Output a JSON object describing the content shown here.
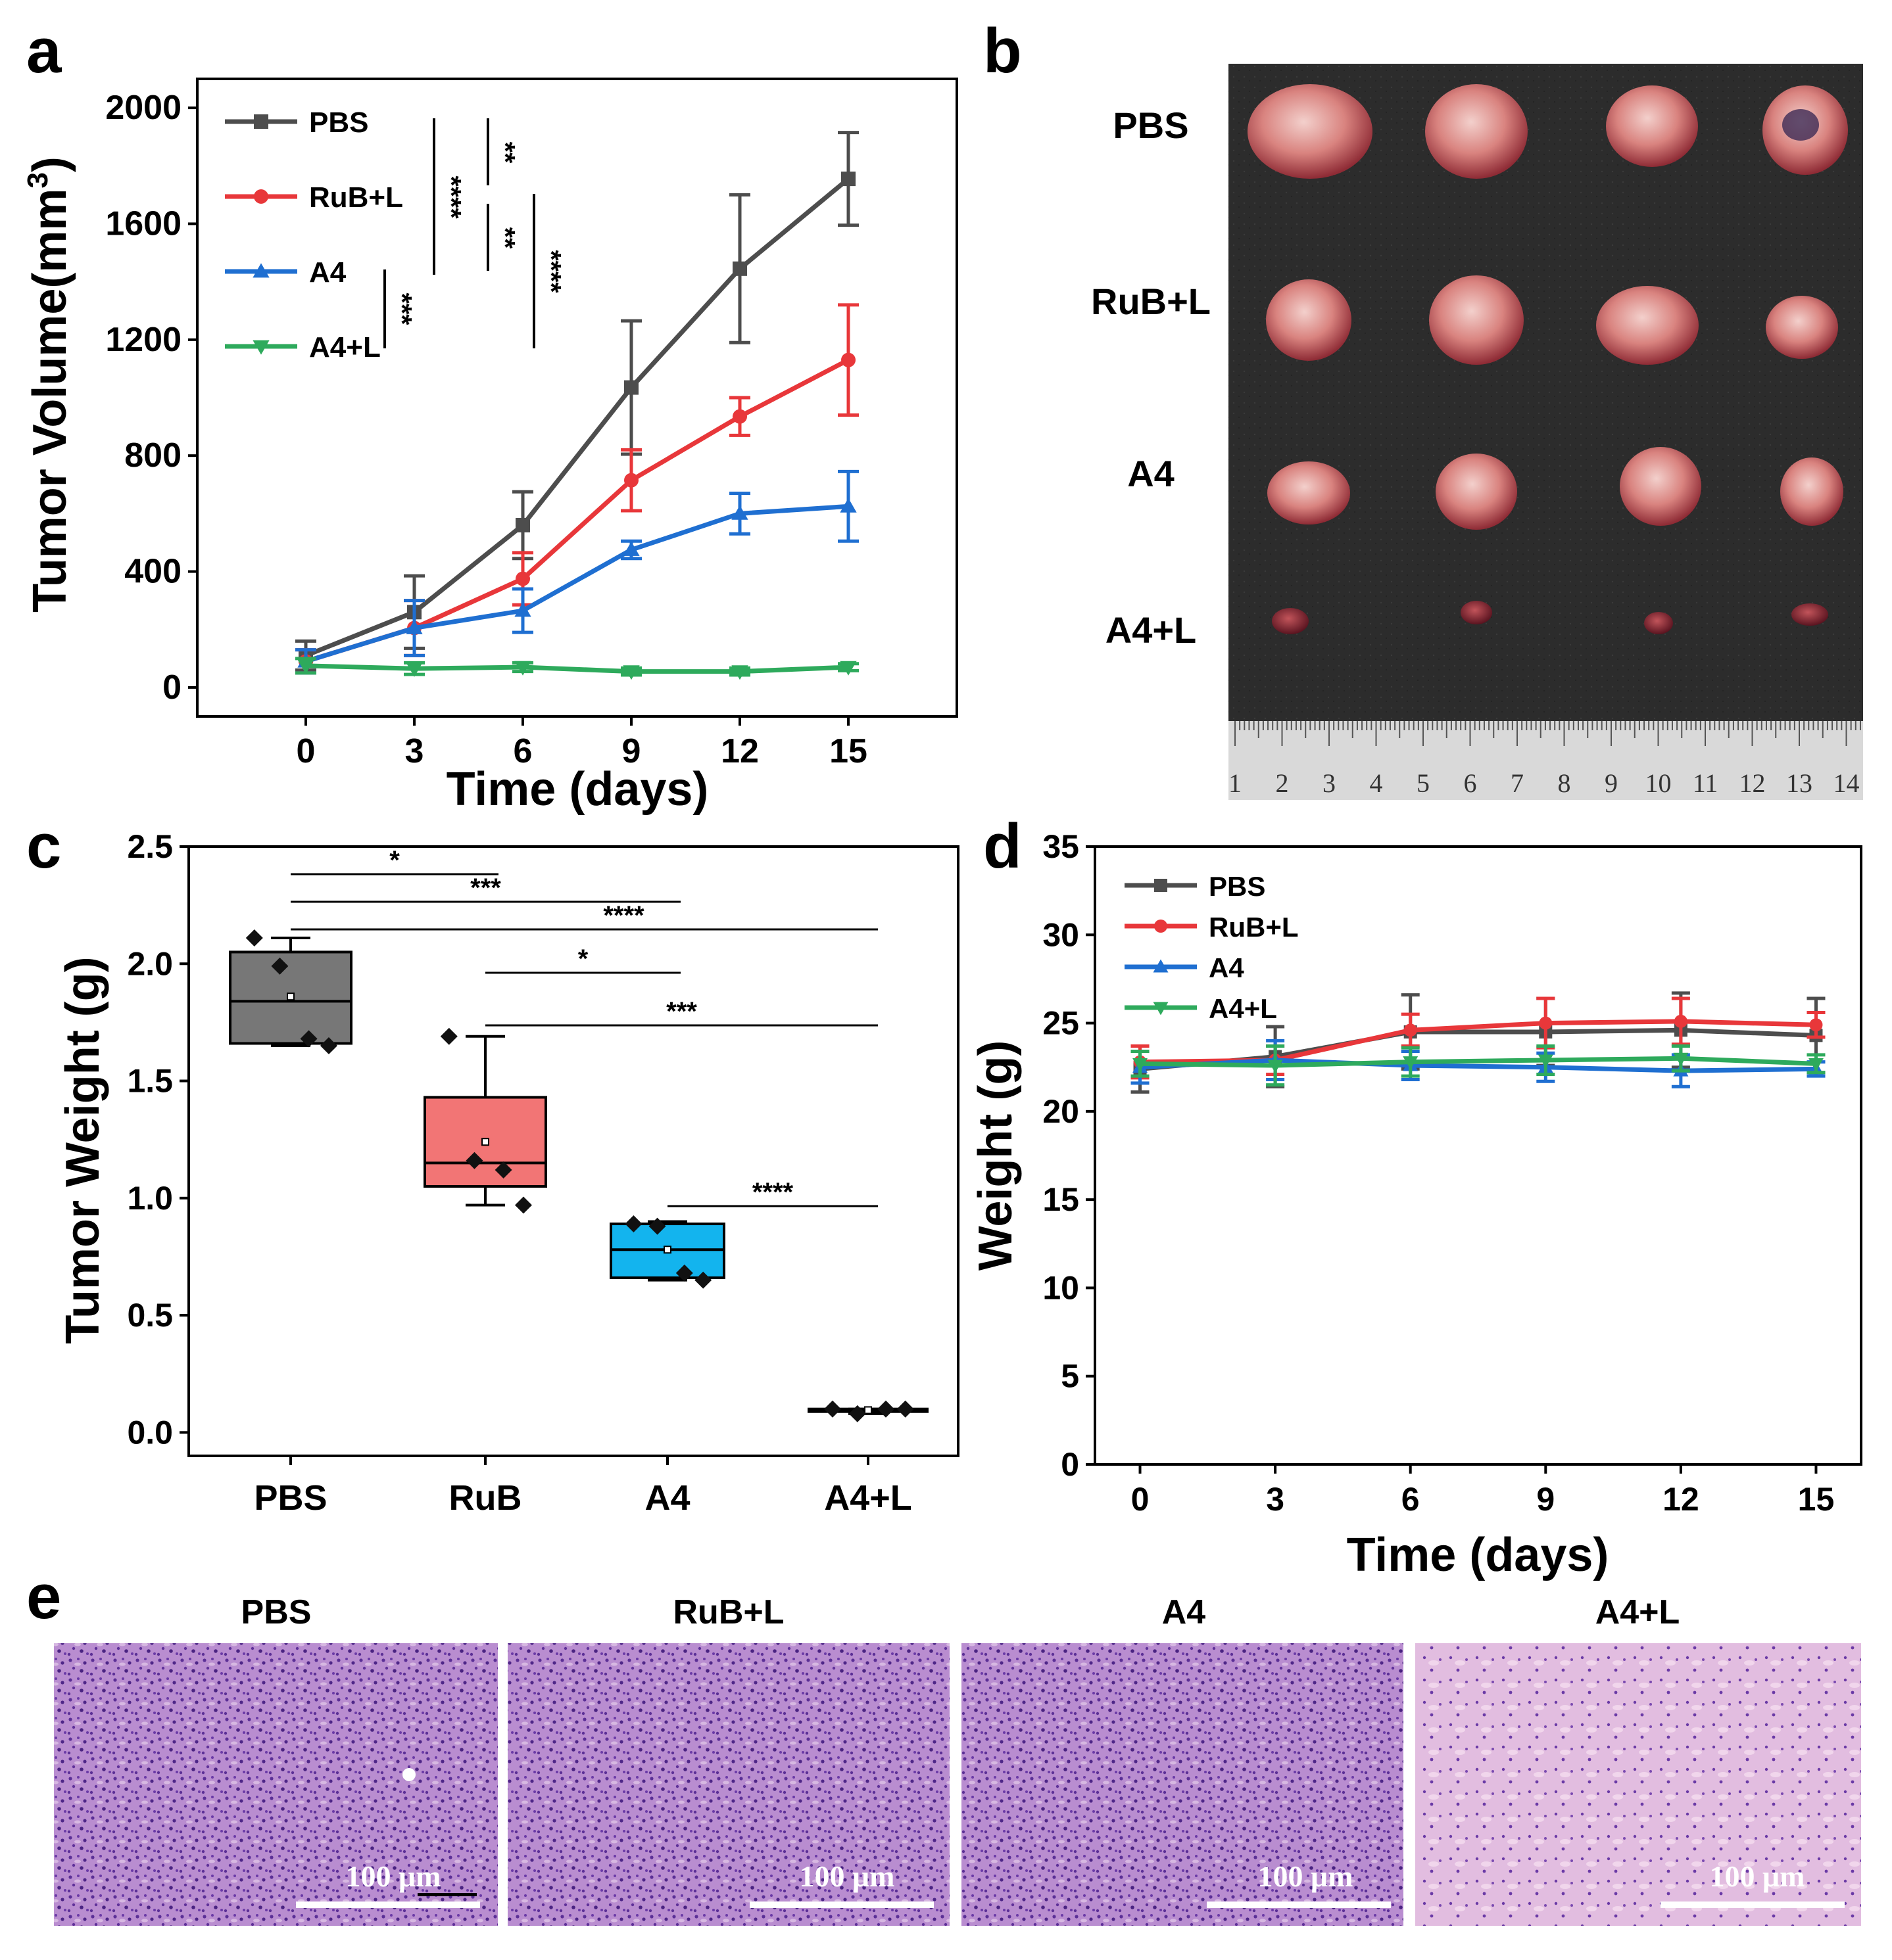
{
  "panel_labels": [
    "a",
    "b",
    "c",
    "d",
    "e"
  ],
  "colors": {
    "PBS": "#4d4d4d",
    "RuB+L": "#e8373a",
    "A4": "#1f6fd1",
    "A4+L": "#2eaa5c",
    "box_PBS": "#777777",
    "box_RuB": "#f27575",
    "box_A4": "#13b4ee",
    "box_A4L": "#f2f2f2"
  },
  "chart_data": [
    {
      "panel": "a",
      "type": "line",
      "xlabel": "Time (days)",
      "ylabel": "Tumor Volume(mm3)",
      "ylabel_main": "Tumor Volume(mm",
      "ylabel_sup": "3",
      "ylabel_end": ")",
      "x": [
        0,
        3,
        6,
        9,
        12,
        15
      ],
      "xlim": [
        -3,
        18
      ],
      "ylim": [
        -100,
        2100
      ],
      "xticks": [
        0,
        3,
        6,
        9,
        12,
        15
      ],
      "yticks": [
        0,
        400,
        800,
        1200,
        1600,
        2000
      ],
      "legend": "top-left",
      "series": [
        {
          "name": "PBS",
          "marker": "square",
          "values": [
            110,
            260,
            560,
            1035,
            1445,
            1755
          ],
          "errors": [
            50,
            125,
            115,
            230,
            255,
            160
          ]
        },
        {
          "name": "RuB+L",
          "marker": "circle",
          "values": [
            90,
            205,
            375,
            715,
            935,
            1130
          ],
          "errors": [
            40,
            95,
            90,
            105,
            65,
            190
          ]
        },
        {
          "name": "A4",
          "marker": "triangle-up",
          "values": [
            90,
            205,
            265,
            475,
            600,
            625
          ],
          "errors": [
            40,
            95,
            75,
            30,
            70,
            120
          ]
        },
        {
          "name": "A4+L",
          "marker": "triangle-down",
          "values": [
            75,
            65,
            70,
            55,
            55,
            70
          ],
          "errors": [
            25,
            20,
            15,
            12,
            12,
            12
          ]
        }
      ],
      "significance": [
        "****",
        "**",
        "**",
        "****",
        "***"
      ]
    },
    {
      "panel": "c",
      "type": "box",
      "ylabel": "Tumor Weight (g)",
      "categories": [
        "PBS",
        "RuB",
        "A4",
        "A4+L"
      ],
      "ylim": [
        -0.1,
        2.5
      ],
      "yticks": [
        0.0,
        0.5,
        1.0,
        1.5,
        2.0,
        2.5
      ],
      "ytick_labels": [
        "0.0",
        "0.5",
        "1.0",
        "1.5",
        "2.0",
        "2.5"
      ],
      "boxes": [
        {
          "name": "PBS",
          "q1": 1.66,
          "median": 1.84,
          "q3": 2.05,
          "min": 1.65,
          "max": 2.11,
          "mean": 1.86,
          "points": [
            2.11,
            1.99,
            1.68,
            1.65
          ]
        },
        {
          "name": "RuB",
          "q1": 1.05,
          "median": 1.15,
          "q3": 1.43,
          "min": 0.97,
          "max": 1.69,
          "mean": 1.24,
          "points": [
            1.69,
            1.16,
            1.12,
            0.97
          ]
        },
        {
          "name": "A4",
          "q1": 0.66,
          "median": 0.78,
          "q3": 0.89,
          "min": 0.65,
          "max": 0.9,
          "mean": 0.78,
          "points": [
            0.89,
            0.88,
            0.68,
            0.65
          ]
        },
        {
          "name": "A4+L",
          "q1": 0.09,
          "median": 0.095,
          "q3": 0.1,
          "min": 0.08,
          "max": 0.1,
          "mean": 0.095,
          "points": [
            0.1,
            0.08,
            0.1,
            0.1
          ]
        }
      ],
      "significance": [
        {
          "from": "PBS",
          "to": "RuB",
          "label": "*"
        },
        {
          "from": "PBS",
          "to": "A4",
          "label": "***"
        },
        {
          "from": "PBS",
          "to": "A4+L",
          "label": "****"
        },
        {
          "from": "RuB",
          "to": "A4",
          "label": "*"
        },
        {
          "from": "RuB",
          "to": "A4+L",
          "label": "***"
        },
        {
          "from": "A4",
          "to": "A4+L",
          "label": "****"
        }
      ]
    },
    {
      "panel": "d",
      "type": "line",
      "xlabel": "Time (days)",
      "ylabel": "Weight (g)",
      "x": [
        0,
        3,
        6,
        9,
        12,
        15
      ],
      "xlim": [
        -1,
        16
      ],
      "ylim": [
        0,
        35
      ],
      "xticks": [
        0,
        3,
        6,
        9,
        12,
        15
      ],
      "yticks": [
        0,
        5,
        10,
        15,
        20,
        25,
        30,
        35
      ],
      "legend": "top-left",
      "series": [
        {
          "name": "PBS",
          "marker": "square",
          "values": [
            22.4,
            23.1,
            24.5,
            24.5,
            24.6,
            24.3
          ],
          "errors": [
            1.3,
            1.7,
            2.1,
            1.9,
            2.1,
            2.1
          ]
        },
        {
          "name": "RuB+L",
          "marker": "circle",
          "values": [
            22.8,
            22.9,
            24.6,
            25.0,
            25.1,
            24.9
          ],
          "errors": [
            0.9,
            0.8,
            0.9,
            1.4,
            1.3,
            0.7
          ]
        },
        {
          "name": "A4",
          "marker": "triangle-up",
          "values": [
            22.5,
            22.9,
            22.6,
            22.5,
            22.3,
            22.4
          ],
          "errors": [
            0.9,
            1.1,
            0.8,
            0.8,
            0.9,
            0.4
          ]
        },
        {
          "name": "A4+L",
          "marker": "triangle-down",
          "values": [
            22.7,
            22.6,
            22.8,
            22.9,
            23.0,
            22.7
          ],
          "errors": [
            0.7,
            1.1,
            0.8,
            0.8,
            0.7,
            0.5
          ]
        }
      ]
    }
  ],
  "photo_b": {
    "row_labels": [
      "PBS",
      "RuB+L",
      "A4",
      "A4+L"
    ],
    "ruler_numbers": [
      "1",
      "2",
      "3",
      "4",
      "5",
      "6",
      "7",
      "8",
      "9",
      "10",
      "11",
      "12",
      "13",
      "14"
    ]
  },
  "histology_e": {
    "titles": [
      "PBS",
      "RuB+L",
      "A4",
      "A4+L"
    ],
    "scale_label": "100 μm"
  }
}
